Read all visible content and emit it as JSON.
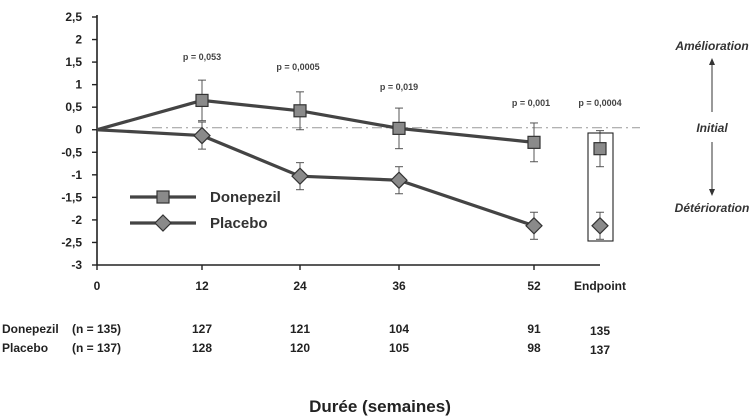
{
  "chart_data": {
    "type": "line",
    "x_ticks": [
      "0",
      "12",
      "24",
      "36",
      "52",
      "Endpoint"
    ],
    "y_ticks": [
      "2,5",
      "2",
      "1,5",
      "1",
      "0,5",
      "0",
      "-0,5",
      "-1",
      "-1,5",
      "-2",
      "-2,5",
      "-3"
    ],
    "ylim": [
      -3,
      2.5
    ],
    "xlabel": "Durée (semaines)",
    "series": [
      {
        "name": "Donepezil",
        "marker": "square",
        "values": [
          0,
          0.65,
          0.42,
          0.03,
          -0.28,
          -0.42
        ],
        "err": [
          0,
          0.45,
          0.42,
          0.45,
          0.43,
          0.4
        ]
      },
      {
        "name": "Placebo",
        "marker": "diamond",
        "values": [
          0,
          -0.13,
          -1.03,
          -1.12,
          -2.13,
          -2.13
        ],
        "err": [
          0,
          0.3,
          0.3,
          0.3,
          0.3,
          0.3
        ]
      }
    ],
    "p_values": [
      "p = 0,053",
      "p = 0,0005",
      "p = 0,019",
      "p = 0,001",
      "p = 0,0004"
    ],
    "side_labels": {
      "top": "Amélioration",
      "middle": "Initial",
      "bottom": "Détérioration"
    },
    "n_table": [
      {
        "label": "Donepezil",
        "n": "(n = 135)",
        "counts": [
          "127",
          "121",
          "104",
          "91",
          "135"
        ]
      },
      {
        "label": "Placebo",
        "n": "(n = 137)",
        "counts": [
          "128",
          "120",
          "105",
          "98",
          "137"
        ]
      }
    ],
    "colors": {
      "line": "#444444",
      "marker": "#8a8a8a",
      "reference": "#999999"
    }
  }
}
